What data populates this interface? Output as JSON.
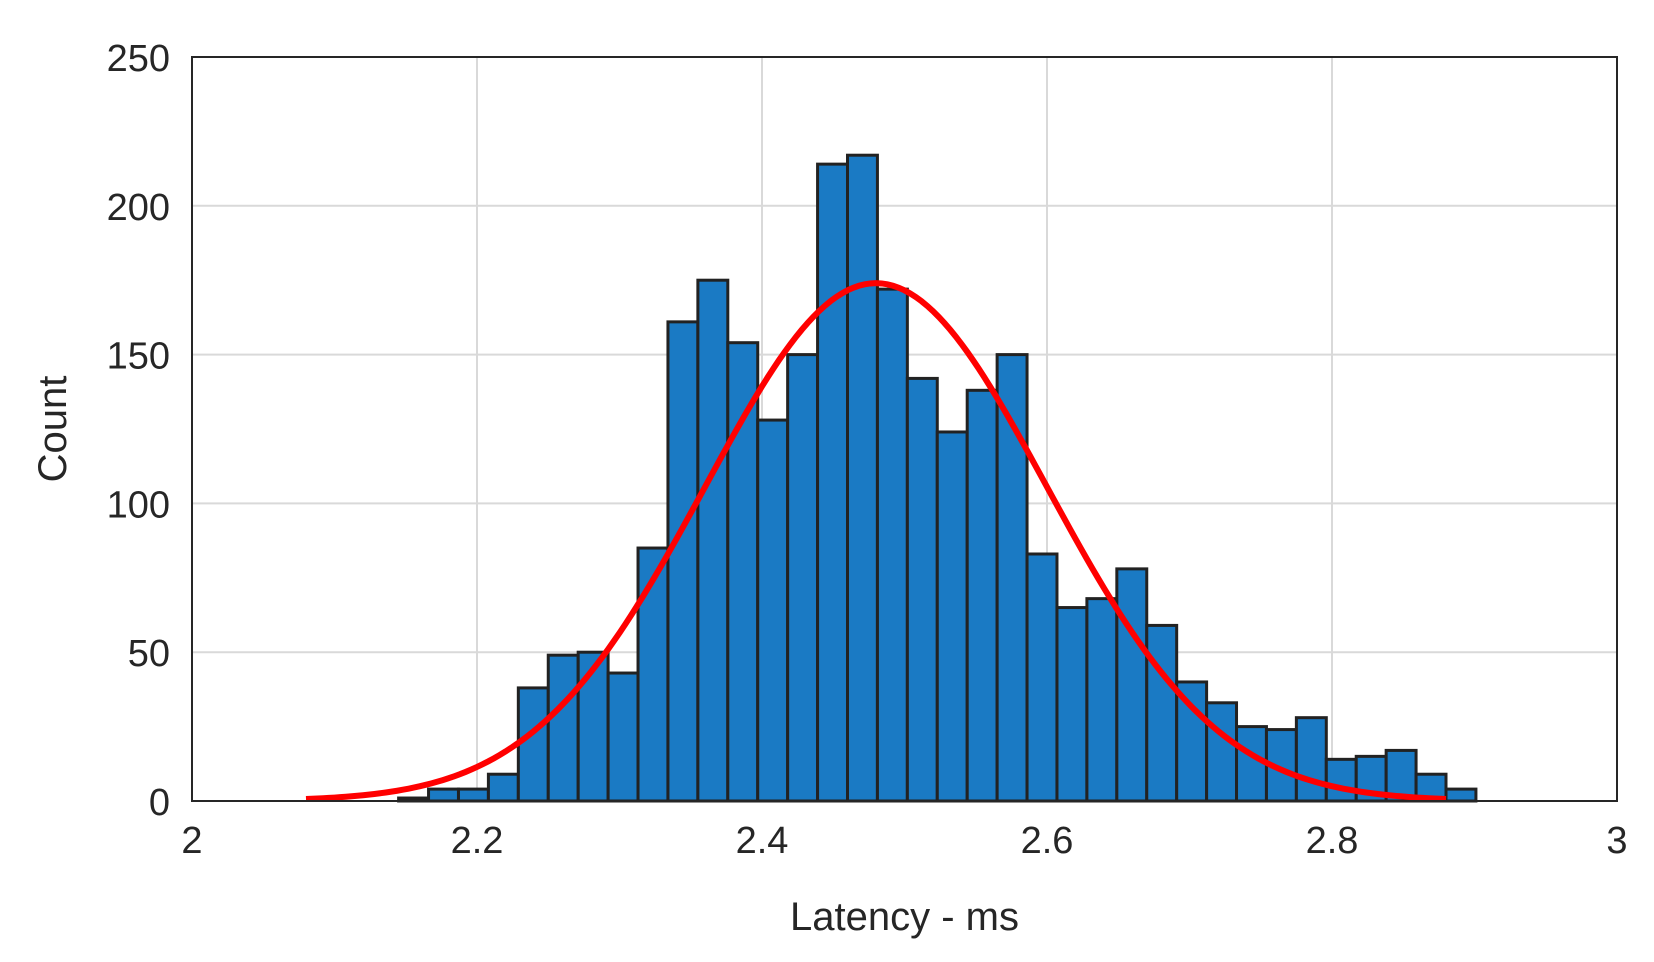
{
  "chart_data": {
    "type": "bar",
    "xlabel": "Latency - ms",
    "ylabel": "Count",
    "xlim": [
      2,
      3
    ],
    "ylim": [
      0,
      250
    ],
    "xticks": [
      "2",
      "2.2",
      "2.4",
      "2.6",
      "2.8",
      "3"
    ],
    "yticks": [
      "0",
      "50",
      "100",
      "150",
      "200",
      "250"
    ],
    "grid": true,
    "bin_width": 0.021,
    "bins": [
      {
        "start": 2.145,
        "count": 1
      },
      {
        "start": 2.166,
        "count": 4
      },
      {
        "start": 2.187,
        "count": 4
      },
      {
        "start": 2.208,
        "count": 9
      },
      {
        "start": 2.229,
        "count": 38
      },
      {
        "start": 2.25,
        "count": 49
      },
      {
        "start": 2.271,
        "count": 50
      },
      {
        "start": 2.292,
        "count": 43
      },
      {
        "start": 2.313,
        "count": 85
      },
      {
        "start": 2.334,
        "count": 161
      },
      {
        "start": 2.355,
        "count": 175
      },
      {
        "start": 2.376,
        "count": 154
      },
      {
        "start": 2.397,
        "count": 128
      },
      {
        "start": 2.418,
        "count": 150
      },
      {
        "start": 2.439,
        "count": 214
      },
      {
        "start": 2.46,
        "count": 217
      },
      {
        "start": 2.481,
        "count": 172
      },
      {
        "start": 2.502,
        "count": 142
      },
      {
        "start": 2.523,
        "count": 124
      },
      {
        "start": 2.544,
        "count": 138
      },
      {
        "start": 2.565,
        "count": 150
      },
      {
        "start": 2.586,
        "count": 83
      },
      {
        "start": 2.607,
        "count": 65
      },
      {
        "start": 2.628,
        "count": 68
      },
      {
        "start": 2.649,
        "count": 78
      },
      {
        "start": 2.67,
        "count": 59
      },
      {
        "start": 2.691,
        "count": 40
      },
      {
        "start": 2.712,
        "count": 33
      },
      {
        "start": 2.733,
        "count": 25
      },
      {
        "start": 2.754,
        "count": 24
      },
      {
        "start": 2.775,
        "count": 28
      },
      {
        "start": 2.796,
        "count": 14
      },
      {
        "start": 2.817,
        "count": 15
      },
      {
        "start": 2.838,
        "count": 17
      },
      {
        "start": 2.859,
        "count": 9
      },
      {
        "start": 2.88,
        "count": 4
      }
    ],
    "fit_curve": {
      "type": "normal",
      "mean": 2.48,
      "sigma": 0.12,
      "peak": 174,
      "x_range": [
        2.08,
        2.88
      ],
      "color": "#ff0000"
    },
    "bar_color": "#1a7ac4"
  }
}
